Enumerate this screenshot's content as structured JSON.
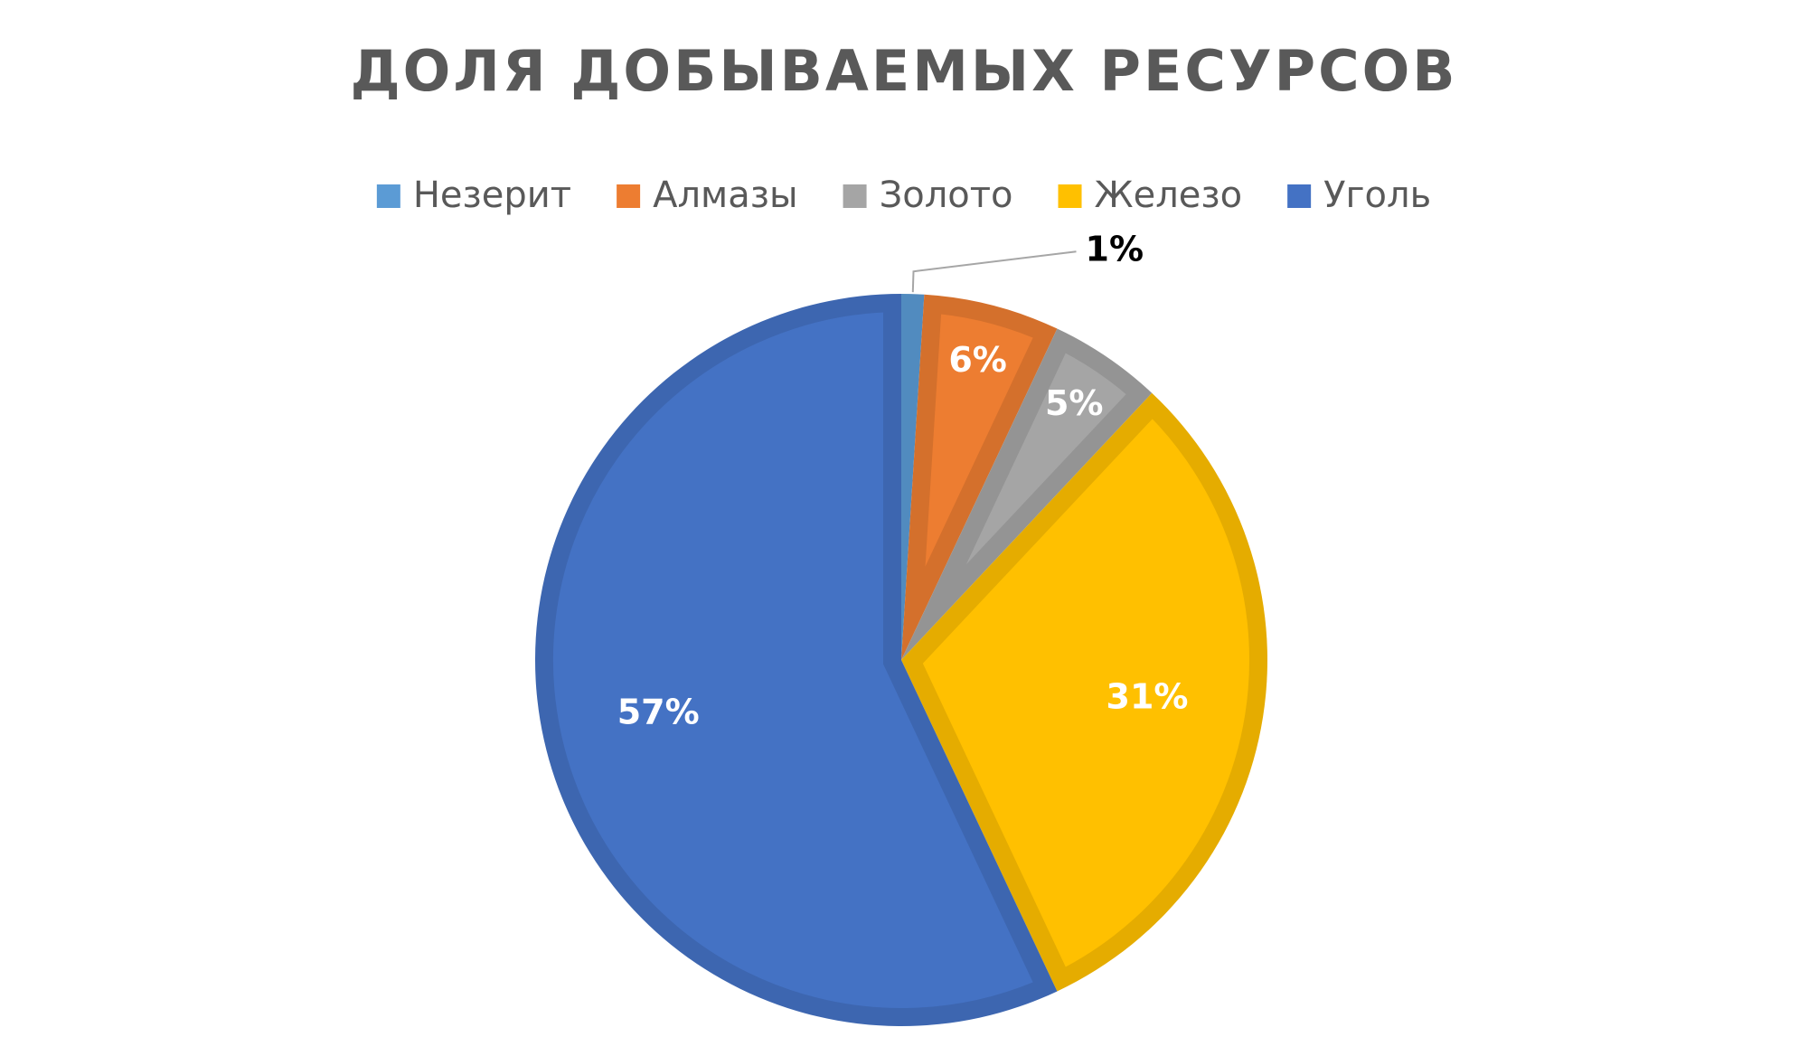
{
  "chart_data": {
    "type": "pie",
    "title": "ДОЛЯ ДОБЫВАЕМЫХ РЕСУРСОВ",
    "categories": [
      "Незерит",
      "Алмазы",
      "Золото",
      "Железо",
      "Уголь"
    ],
    "values": [
      1,
      6,
      5,
      31,
      57
    ],
    "value_labels": [
      "1%",
      "6%",
      "5%",
      "31%",
      "57%"
    ],
    "colors": [
      "#5b9bd5",
      "#ed7d31",
      "#a5a5a5",
      "#ffc000",
      "#4472c4"
    ],
    "legend": "top"
  }
}
